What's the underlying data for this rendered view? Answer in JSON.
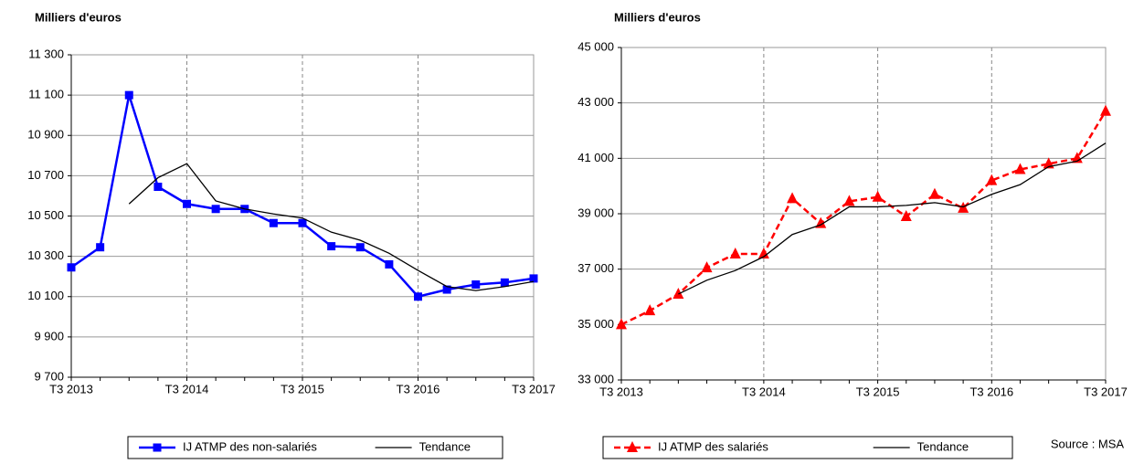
{
  "chart_data": [
    {
      "type": "line",
      "y_label": "Milliers d'euros",
      "categories": [
        "T3 2013",
        null,
        null,
        null,
        "T3 2014",
        null,
        null,
        null,
        "T3 2015",
        null,
        null,
        null,
        "T3 2016",
        null,
        null,
        null,
        "T3 2017"
      ],
      "ylim": [
        9700,
        11300
      ],
      "yticks": [
        {
          "value": 9700,
          "label": "9 700"
        },
        {
          "value": 9900,
          "label": "9 900"
        },
        {
          "value": 10100,
          "label": "10 100"
        },
        {
          "value": 10300,
          "label": "10 300"
        },
        {
          "value": 10500,
          "label": "10 500"
        },
        {
          "value": 10700,
          "label": "10 700"
        },
        {
          "value": 10900,
          "label": "10 900"
        },
        {
          "value": 11100,
          "label": "11 100"
        },
        {
          "value": 11300,
          "label": "11 300"
        }
      ],
      "grid": true,
      "series": [
        {
          "name": "IJ ATMP des non-salariés",
          "color": "#0000ff",
          "marker": "square",
          "dashed": false,
          "values": [
            10245,
            10345,
            11100,
            10645,
            10560,
            10535,
            10535,
            10465,
            10465,
            10350,
            10345,
            10260,
            10100,
            10135,
            10160,
            10170,
            10190
          ]
        },
        {
          "name": "Tendance",
          "color": "#000000",
          "marker": "none",
          "dashed": false,
          "values": [
            null,
            null,
            10560,
            10690,
            10760,
            10575,
            10535,
            10510,
            10490,
            10420,
            10380,
            10315,
            10230,
            10150,
            10130,
            10150,
            10175
          ]
        }
      ]
    },
    {
      "type": "line",
      "y_label": "Milliers d'euros",
      "categories": [
        "T3 2013",
        null,
        null,
        null,
        null,
        "T3 2014",
        null,
        null,
        null,
        "T3 2015",
        null,
        null,
        null,
        "T3 2016",
        null,
        null,
        null,
        "T3 2017"
      ],
      "ylim": [
        33000,
        45000
      ],
      "yticks": [
        {
          "value": 33000,
          "label": "33 000"
        },
        {
          "value": 35000,
          "label": "35 000"
        },
        {
          "value": 37000,
          "label": "37 000"
        },
        {
          "value": 39000,
          "label": "39 000"
        },
        {
          "value": 41000,
          "label": "41 000"
        },
        {
          "value": 43000,
          "label": "43 000"
        },
        {
          "value": 45000,
          "label": "45 000"
        }
      ],
      "grid": true,
      "series": [
        {
          "name": "IJ ATMP des salariés",
          "color": "#ff0000",
          "marker": "triangle",
          "dashed": true,
          "values": [
            35000,
            35500,
            36100,
            37050,
            37550,
            37550,
            39550,
            38650,
            39450,
            39600,
            38900,
            39700,
            39200,
            40200,
            40600,
            40800,
            41000,
            42700
          ]
        },
        {
          "name": "Tendance",
          "color": "#000000",
          "marker": "none",
          "dashed": false,
          "values": [
            null,
            null,
            36100,
            36600,
            36950,
            37450,
            38250,
            38600,
            39250,
            39250,
            39300,
            39400,
            39250,
            39700,
            40050,
            40700,
            40900,
            41550
          ]
        }
      ]
    }
  ],
  "source": "Source : MSA"
}
